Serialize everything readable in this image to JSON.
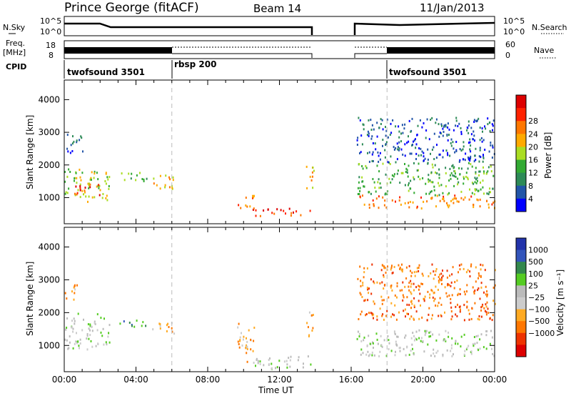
{
  "header": {
    "station": "Prince George (fitACF)",
    "beam": "Beam 14",
    "date": "11/Jan/2013"
  },
  "top_panels": {
    "nsky_label": "N.Sky",
    "freq_label_1": "Freq.",
    "freq_label_2": "[MHz]",
    "cpid_label": "CPID",
    "nsearch_label": "N.Search",
    "nave_label": "Nave",
    "nsky_ticks": [
      "10^5",
      "10^0"
    ],
    "nsearch_ticks": [
      "10^5",
      "10^0"
    ],
    "freq_ticks": [
      "18",
      "8"
    ],
    "nave_ticks": [
      "60",
      "0"
    ],
    "cpid_modes": [
      {
        "label": "twofsound 3501",
        "start_hour": 0
      },
      {
        "label": "rbsp 200",
        "start_hour": 6
      },
      {
        "label": "twofsound 3501",
        "start_hour": 18
      }
    ],
    "data_gap_hours": [
      13.9,
      16.1
    ]
  },
  "colors": {
    "power": [
      "#0000ff",
      "#2255a8",
      "#2d8a57",
      "#33aa33",
      "#aadd22",
      "#ffaa00",
      "#ff7700",
      "#ff2200",
      "#dd0000"
    ],
    "velocity": [
      "#2233aa",
      "#3355bb",
      "#33884d",
      "#55cc22",
      "#bbbbbb",
      "#cccccc",
      "#ffaa22",
      "#ff7700",
      "#ee3300",
      "#dd0000"
    ],
    "ground_scatter": "#bbbbbb"
  },
  "chart_data": [
    {
      "type": "heatmap",
      "name": "power-panel",
      "ylabel": "Slant Range [km]",
      "x_range_hours": [
        0,
        24
      ],
      "ylim": [
        200,
        4600
      ],
      "y_ticks": [
        1000,
        2000,
        3000,
        4000
      ],
      "colorbar_label": "Power [dB]",
      "colorbar_ticks": [
        "4",
        "8",
        "12",
        "16",
        "20",
        "24",
        "28"
      ],
      "regions": [
        {
          "t0": 0.0,
          "t1": 2.6,
          "r0": 900,
          "r1": 1900,
          "level": 4
        },
        {
          "t0": 0.5,
          "t1": 2.0,
          "r0": 1100,
          "r1": 1450,
          "level": 7
        },
        {
          "t0": 0.0,
          "t1": 1.0,
          "r0": 2400,
          "r1": 3000,
          "level": 1
        },
        {
          "t0": 3.0,
          "t1": 4.6,
          "r0": 1500,
          "r1": 1800,
          "level": 3
        },
        {
          "t0": 4.8,
          "t1": 6.1,
          "r0": 1300,
          "r1": 1800,
          "level": 5
        },
        {
          "t0": 9.6,
          "t1": 10.6,
          "r0": 700,
          "r1": 1100,
          "level": 6
        },
        {
          "t0": 10.5,
          "t1": 13.8,
          "r0": 450,
          "r1": 700,
          "level": 7
        },
        {
          "t0": 13.4,
          "t1": 13.9,
          "r0": 1300,
          "r1": 2100,
          "level": 5
        },
        {
          "t0": 16.3,
          "t1": 24.0,
          "r0": 700,
          "r1": 1100,
          "level": 6
        },
        {
          "t0": 16.3,
          "t1": 24.0,
          "r0": 1100,
          "r1": 2100,
          "level": 3
        },
        {
          "t0": 16.3,
          "t1": 24.0,
          "r0": 2100,
          "r1": 3500,
          "level": 1
        }
      ]
    },
    {
      "type": "heatmap",
      "name": "velocity-panel",
      "ylabel": "Slant Range [km]",
      "xlabel": "Time UT",
      "x_range_hours": [
        0,
        24
      ],
      "x_ticks": [
        "00:00",
        "04:00",
        "08:00",
        "12:00",
        "16:00",
        "20:00",
        "00:00"
      ],
      "ylim": [
        200,
        4600
      ],
      "y_ticks": [
        1000,
        2000,
        3000,
        4000
      ],
      "colorbar_label": "Velocity [m s⁻¹]",
      "colorbar_ticks": [
        "1000",
        "500",
        "100",
        "25",
        "−25",
        "−100",
        "−500",
        "−1000"
      ],
      "regions": [
        {
          "t0": 0.0,
          "t1": 2.5,
          "r0": 900,
          "r1": 2000,
          "level": 4
        },
        {
          "t0": 0.0,
          "t1": 0.8,
          "r0": 2400,
          "r1": 2900,
          "level": 6
        },
        {
          "t0": 3.0,
          "t1": 4.6,
          "r0": 1550,
          "r1": 1800,
          "level": 2
        },
        {
          "t0": 4.8,
          "t1": 6.1,
          "r0": 1350,
          "r1": 1750,
          "level": 6
        },
        {
          "t0": 9.6,
          "t1": 10.6,
          "r0": 500,
          "r1": 1700,
          "level": 6
        },
        {
          "t0": 10.5,
          "t1": 13.8,
          "r0": 300,
          "r1": 700,
          "level": 4
        },
        {
          "t0": 13.4,
          "t1": 13.9,
          "r0": 1300,
          "r1": 2100,
          "level": 6
        },
        {
          "t0": 16.3,
          "t1": 24.0,
          "r0": 700,
          "r1": 1500,
          "level": 4
        },
        {
          "t0": 16.3,
          "t1": 24.0,
          "r0": 1800,
          "r1": 3500,
          "level": 7
        }
      ]
    }
  ]
}
